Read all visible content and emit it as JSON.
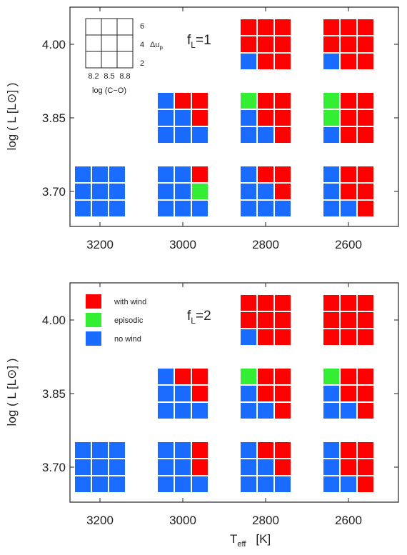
{
  "colors": {
    "with_wind": "#ff0000",
    "episodic": "#33ee33",
    "no_wind": "#1a6bff"
  },
  "chart_data": [
    {
      "type": "heatmap",
      "x_axis": {
        "ticks": [
          "3200",
          "3000",
          "2800",
          "2600"
        ],
        "label": ""
      },
      "y_axis": {
        "ticks": [
          "4.00",
          "3.85",
          "3.70"
        ],
        "label": "log ( L [L⊙] )"
      },
      "annotation": "fL=1",
      "annotation_main": "f",
      "annotation_sub": "L",
      "annotation_rest": "=1",
      "key": {
        "y_ticks": [
          "6",
          "4",
          "2"
        ],
        "y_label_main": "Δu",
        "y_label_sub": "p",
        "x_ticks": [
          "8.2",
          "8.5",
          "8.8"
        ],
        "x_label": "log (C−O)"
      },
      "cells": [
        {
          "teff": 3200,
          "logL": 3.7,
          "grid": [
            [
              "N",
              "N",
              "N"
            ],
            [
              "N",
              "N",
              "N"
            ],
            [
              "N",
              "N",
              "N"
            ]
          ]
        },
        {
          "teff": 3000,
          "logL": 3.85,
          "grid": [
            [
              "N",
              "W",
              "W"
            ],
            [
              "N",
              "N",
              "W"
            ],
            [
              "N",
              "N",
              "N"
            ]
          ]
        },
        {
          "teff": 3000,
          "logL": 3.7,
          "grid": [
            [
              "N",
              "N",
              "W"
            ],
            [
              "N",
              "N",
              "E"
            ],
            [
              "N",
              "N",
              "N"
            ]
          ]
        },
        {
          "teff": 2800,
          "logL": 4.0,
          "grid": [
            [
              "W",
              "W",
              "W"
            ],
            [
              "W",
              "W",
              "W"
            ],
            [
              "N",
              "W",
              "W"
            ]
          ]
        },
        {
          "teff": 2800,
          "logL": 3.85,
          "grid": [
            [
              "E",
              "W",
              "W"
            ],
            [
              "N",
              "W",
              "W"
            ],
            [
              "N",
              "N",
              "W"
            ]
          ]
        },
        {
          "teff": 2800,
          "logL": 3.7,
          "grid": [
            [
              "N",
              "W",
              "W"
            ],
            [
              "N",
              "N",
              "W"
            ],
            [
              "N",
              "N",
              "N"
            ]
          ]
        },
        {
          "teff": 2600,
          "logL": 4.0,
          "grid": [
            [
              "W",
              "W",
              "W"
            ],
            [
              "W",
              "W",
              "W"
            ],
            [
              "N",
              "W",
              "W"
            ]
          ]
        },
        {
          "teff": 2600,
          "logL": 3.85,
          "grid": [
            [
              "E",
              "W",
              "W"
            ],
            [
              "E",
              "W",
              "W"
            ],
            [
              "N",
              "W",
              "W"
            ]
          ]
        },
        {
          "teff": 2600,
          "logL": 3.7,
          "grid": [
            [
              "N",
              "W",
              "W"
            ],
            [
              "N",
              "W",
              "W"
            ],
            [
              "N",
              "N",
              "W"
            ]
          ]
        }
      ]
    },
    {
      "type": "heatmap",
      "x_axis": {
        "ticks": [
          "3200",
          "3000",
          "2800",
          "2600"
        ],
        "label": "T_eff [K]"
      },
      "y_axis": {
        "ticks": [
          "4.00",
          "3.85",
          "3.70"
        ],
        "label": "log ( L [L⊙] )"
      },
      "annotation": "fL=2",
      "annotation_main": "f",
      "annotation_sub": "L",
      "annotation_rest": "=2",
      "legend": [
        {
          "label": "with wind",
          "code": "W"
        },
        {
          "label": "episodic",
          "code": "E"
        },
        {
          "label": "no wind",
          "code": "N"
        }
      ],
      "cells": [
        {
          "teff": 3200,
          "logL": 3.7,
          "grid": [
            [
              "N",
              "N",
              "N"
            ],
            [
              "N",
              "N",
              "N"
            ],
            [
              "N",
              "N",
              "N"
            ]
          ]
        },
        {
          "teff": 3000,
          "logL": 3.85,
          "grid": [
            [
              "N",
              "W",
              "W"
            ],
            [
              "N",
              "N",
              "W"
            ],
            [
              "N",
              "N",
              "N"
            ]
          ]
        },
        {
          "teff": 3000,
          "logL": 3.7,
          "grid": [
            [
              "N",
              "N",
              "W"
            ],
            [
              "N",
              "N",
              "W"
            ],
            [
              "N",
              "N",
              "N"
            ]
          ]
        },
        {
          "teff": 2800,
          "logL": 4.0,
          "grid": [
            [
              "W",
              "W",
              "W"
            ],
            [
              "W",
              "W",
              "W"
            ],
            [
              "N",
              "W",
              "W"
            ]
          ]
        },
        {
          "teff": 2800,
          "logL": 3.85,
          "grid": [
            [
              "E",
              "W",
              "W"
            ],
            [
              "N",
              "W",
              "W"
            ],
            [
              "N",
              "N",
              "W"
            ]
          ]
        },
        {
          "teff": 2800,
          "logL": 3.7,
          "grid": [
            [
              "N",
              "W",
              "W"
            ],
            [
              "N",
              "N",
              "W"
            ],
            [
              "N",
              "N",
              "N"
            ]
          ]
        },
        {
          "teff": 2600,
          "logL": 4.0,
          "grid": [
            [
              "W",
              "W",
              "W"
            ],
            [
              "W",
              "W",
              "W"
            ],
            [
              "W",
              "W",
              "W"
            ]
          ]
        },
        {
          "teff": 2600,
          "logL": 3.85,
          "grid": [
            [
              "E",
              "W",
              "W"
            ],
            [
              "N",
              "W",
              "W"
            ],
            [
              "N",
              "N",
              "W"
            ]
          ]
        },
        {
          "teff": 2600,
          "logL": 3.7,
          "grid": [
            [
              "N",
              "W",
              "W"
            ],
            [
              "N",
              "W",
              "W"
            ],
            [
              "N",
              "N",
              "W"
            ]
          ]
        }
      ]
    }
  ],
  "x_label_main": "T",
  "x_label_sub": "eff",
  "x_label_unit": "[K]"
}
